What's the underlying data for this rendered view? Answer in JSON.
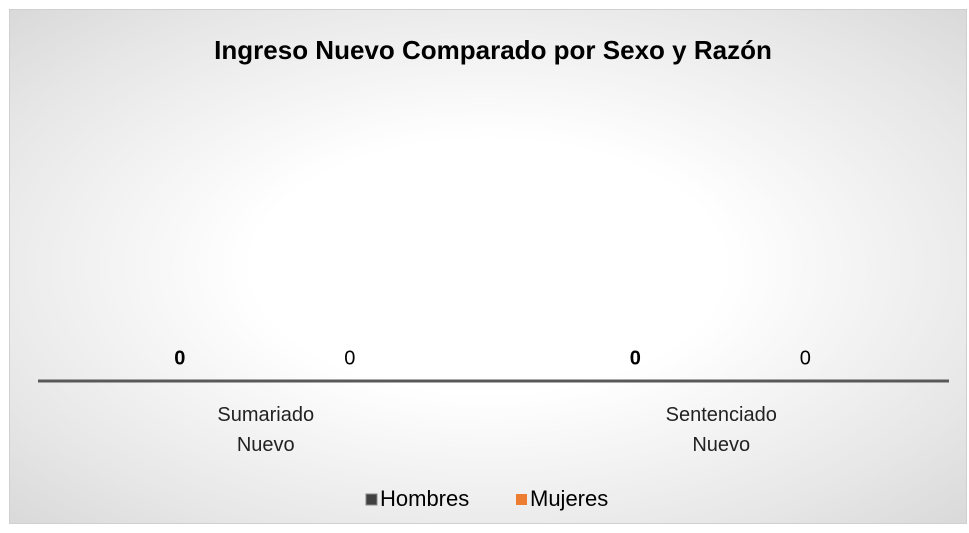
{
  "chart_data": {
    "type": "bar",
    "title": "Ingreso Nuevo Comparado por Sexo y Razón",
    "categories": [
      "Sumariado Nuevo",
      "Sentenciado Nuevo"
    ],
    "series": [
      {
        "name": "Hombres",
        "color": "#404040",
        "values": [
          0,
          0
        ]
      },
      {
        "name": "Mujeres",
        "color": "#ed7d31",
        "values": [
          0,
          0
        ]
      }
    ],
    "legend": "bottom"
  }
}
